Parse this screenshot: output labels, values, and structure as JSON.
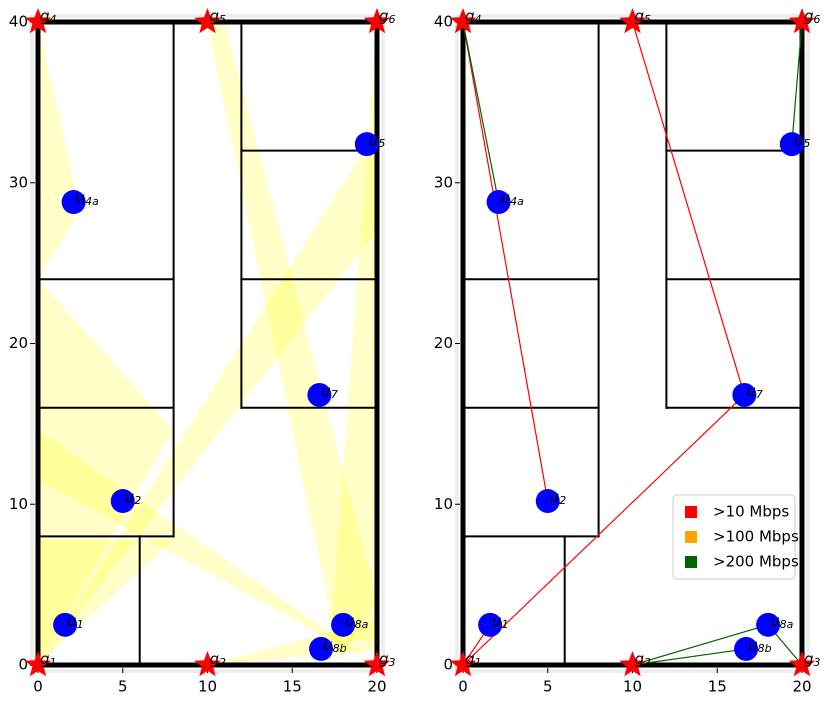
{
  "chart_data": [
    {
      "type": "floorplan",
      "xlim": [
        0,
        20
      ],
      "ylim": [
        0,
        40
      ],
      "xticks": [
        0,
        5,
        10,
        15,
        20
      ],
      "yticks": [
        0,
        10,
        20,
        30,
        40
      ],
      "walls": [
        [
          0,
          0,
          20,
          0
        ],
        [
          20,
          0,
          20,
          40
        ],
        [
          20,
          40,
          0,
          40
        ],
        [
          0,
          40,
          0,
          0
        ],
        [
          8,
          8,
          8,
          40
        ],
        [
          0,
          24,
          8,
          24
        ],
        [
          0,
          16,
          8,
          16
        ],
        [
          0,
          8,
          8,
          8
        ],
        [
          6,
          0,
          6,
          8
        ],
        [
          12,
          16,
          12,
          40
        ],
        [
          12,
          32,
          20,
          32
        ],
        [
          12,
          24,
          20,
          24
        ],
        [
          12,
          16,
          20,
          16
        ]
      ],
      "gateways": {
        "color": "#ff0000",
        "x": [
          0,
          10,
          20,
          0,
          10,
          20
        ],
        "y": [
          0,
          0,
          0,
          40,
          40,
          40
        ],
        "labels": [
          "g1",
          "g2",
          "g3",
          "g4",
          "g5",
          "g6"
        ]
      },
      "users": {
        "color": "#0000ff",
        "x": [
          1.6,
          5,
          2.1,
          19.4,
          16.6,
          18,
          16.7
        ],
        "y": [
          2.5,
          10.2,
          28.8,
          32.4,
          16.8,
          2.5,
          1
        ],
        "labels": [
          "u1",
          "u2",
          "u4a",
          "u5",
          "u7",
          "u8a",
          "u8b"
        ]
      }
    },
    {
      "type": "floorplan",
      "xlim": [
        0,
        20
      ],
      "ylim": [
        0,
        40
      ],
      "xticks": [
        0,
        5,
        10,
        15,
        20
      ],
      "yticks": [
        0,
        10,
        20,
        30,
        40
      ],
      "walls": [
        [
          0,
          0,
          20,
          0
        ],
        [
          20,
          0,
          20,
          40
        ],
        [
          20,
          40,
          0,
          40
        ],
        [
          0,
          40,
          0,
          0
        ],
        [
          8,
          8,
          8,
          40
        ],
        [
          0,
          24,
          8,
          24
        ],
        [
          0,
          16,
          8,
          16
        ],
        [
          0,
          8,
          8,
          8
        ],
        [
          6,
          0,
          6,
          8
        ],
        [
          12,
          16,
          12,
          40
        ],
        [
          12,
          32,
          20,
          32
        ],
        [
          12,
          24,
          20,
          24
        ],
        [
          12,
          16,
          20,
          16
        ]
      ],
      "links": [
        {
          "x": [
            0,
            5
          ],
          "y": [
            40,
            10.2
          ],
          "color": "#ff0000"
        },
        {
          "x": [
            10,
            16.6
          ],
          "y": [
            40,
            16.8
          ],
          "color": "#ff0000"
        },
        {
          "x": [
            0,
            16.6
          ],
          "y": [
            0,
            16.8
          ],
          "color": "#ff0000"
        },
        {
          "x": [
            0,
            1.6
          ],
          "y": [
            0,
            2.5
          ],
          "color": "#ff0000"
        },
        {
          "x": [
            0,
            2.1
          ],
          "y": [
            40,
            28.8
          ],
          "color": "#006400"
        },
        {
          "x": [
            20,
            19.4
          ],
          "y": [
            40,
            32.4
          ],
          "color": "#006400"
        },
        {
          "x": [
            10,
            18
          ],
          "y": [
            0,
            2.5
          ],
          "color": "#006400"
        },
        {
          "x": [
            10,
            16.7
          ],
          "y": [
            0,
            1
          ],
          "color": "#006400"
        },
        {
          "x": [
            20,
            18
          ],
          "y": [
            0,
            2.5
          ],
          "color": "#006400"
        }
      ],
      "gateways": {
        "color": "#ff0000",
        "x": [
          0,
          10,
          20,
          0,
          10,
          20
        ],
        "y": [
          0,
          0,
          0,
          40,
          40,
          40
        ],
        "labels": [
          "g1",
          "g2",
          "g3",
          "g4",
          "g5",
          "g6"
        ]
      },
      "users": {
        "color": "#0000ff",
        "x": [
          1.6,
          5,
          2.1,
          19.4,
          16.6,
          18,
          16.7
        ],
        "y": [
          2.5,
          10.2,
          28.8,
          32.4,
          16.8,
          2.5,
          1
        ],
        "labels": [
          "u1",
          "u2",
          "u4a",
          "u5",
          "u7",
          "u8a",
          "u8b"
        ]
      },
      "legend": [
        {
          "name": ">10 Mbps",
          "color": "#ff0000"
        },
        {
          "name": ">100 Mbps",
          "color": "#ffa500"
        },
        {
          "name": ">200 Mbps",
          "color": "#006400"
        }
      ]
    }
  ]
}
